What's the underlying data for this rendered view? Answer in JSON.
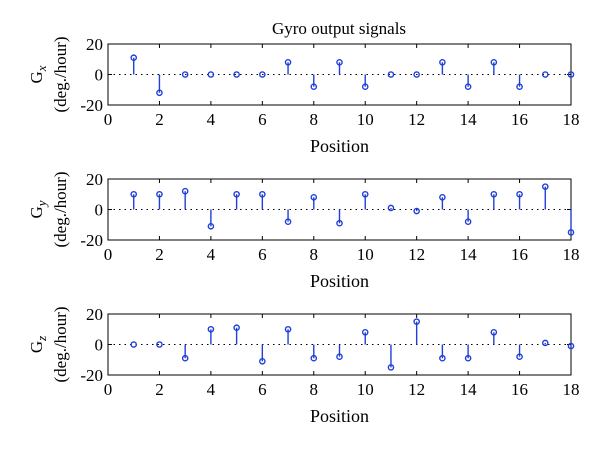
{
  "title": "Gyro output signals",
  "chart_data": [
    {
      "type": "stem",
      "ylabel_symbol": "G",
      "ylabel_sub": "x",
      "ylabel_unit": "(deg./hour)",
      "xlabel": "Position",
      "xlim": [
        0,
        18
      ],
      "ylim": [
        -20,
        20
      ],
      "xticks": [
        0,
        2,
        4,
        6,
        8,
        10,
        12,
        14,
        16,
        18
      ],
      "yticks": [
        20,
        0,
        -20
      ],
      "x": [
        1,
        2,
        3,
        4,
        5,
        6,
        7,
        8,
        9,
        10,
        11,
        12,
        13,
        14,
        15,
        16,
        17,
        18
      ],
      "values": [
        11,
        -12,
        0,
        0,
        0,
        0,
        8,
        -8,
        8,
        -8,
        0,
        0,
        8,
        -8,
        8,
        -8,
        0,
        0
      ]
    },
    {
      "type": "stem",
      "ylabel_symbol": "G",
      "ylabel_sub": "y",
      "ylabel_unit": "(deg./hour)",
      "xlabel": "Position",
      "xlim": [
        0,
        18
      ],
      "ylim": [
        -20,
        20
      ],
      "xticks": [
        0,
        2,
        4,
        6,
        8,
        10,
        12,
        14,
        16,
        18
      ],
      "yticks": [
        20,
        0,
        -20
      ],
      "x": [
        1,
        2,
        3,
        4,
        5,
        6,
        7,
        8,
        9,
        10,
        11,
        12,
        13,
        14,
        15,
        16,
        17,
        18
      ],
      "values": [
        10,
        10,
        12,
        -11,
        10,
        10,
        -8,
        8,
        -9,
        10,
        1,
        -1,
        8,
        -8,
        10,
        10,
        15,
        -15
      ]
    },
    {
      "type": "stem",
      "ylabel_symbol": "G",
      "ylabel_sub": "z",
      "ylabel_unit": "(deg./hour)",
      "xlabel": "Position",
      "xlim": [
        0,
        18
      ],
      "ylim": [
        -20,
        20
      ],
      "xticks": [
        0,
        2,
        4,
        6,
        8,
        10,
        12,
        14,
        16,
        18
      ],
      "yticks": [
        20,
        0,
        -20
      ],
      "x": [
        1,
        2,
        3,
        4,
        5,
        6,
        7,
        8,
        9,
        10,
        11,
        12,
        13,
        14,
        15,
        16,
        17,
        18
      ],
      "values": [
        0,
        0,
        -9,
        10,
        11,
        -11,
        10,
        -9,
        -8,
        8,
        -15,
        15,
        -9,
        -9,
        8,
        -8,
        1,
        -1
      ]
    }
  ],
  "colors": {
    "stem": "#1f3fd9",
    "axes": "#000000"
  }
}
